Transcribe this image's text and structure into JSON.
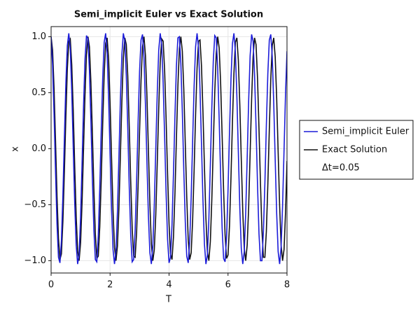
{
  "chart_data": {
    "type": "line",
    "title": "Semi_implicit Euler vs Exact Solution",
    "x_label": "T",
    "y_label": "x",
    "legend_note": "Δt=0.05",
    "legend": "right",
    "grid": true,
    "xlim": [
      0,
      8
    ],
    "xticks": [
      0,
      2,
      4,
      6,
      8
    ],
    "ylim": [
      -1.11,
      1.09
    ],
    "yticks": [
      {
        "value": -1,
        "label": "−1.0"
      },
      {
        "value": -0.5,
        "label": "−0.5"
      },
      {
        "value": 0,
        "label": "0.0"
      },
      {
        "value": 0.5,
        "label": "0.5"
      },
      {
        "value": 1,
        "label": "1.0"
      }
    ],
    "x": [
      0,
      0.05,
      0.1,
      0.15,
      0.2,
      0.25,
      0.3,
      0.35,
      0.4,
      0.45,
      0.5,
      0.55,
      0.6,
      0.65,
      0.7,
      0.75,
      0.8,
      0.85,
      0.9,
      0.95,
      1,
      1.05,
      1.1,
      1.15,
      1.2,
      1.25,
      1.3,
      1.35,
      1.4,
      1.45,
      1.5,
      1.55,
      1.6,
      1.65,
      1.7,
      1.75,
      1.8,
      1.85,
      1.9,
      1.95,
      2,
      2.05,
      2.1,
      2.15,
      2.2,
      2.25,
      2.3,
      2.35,
      2.4,
      2.45,
      2.5,
      2.55,
      2.6,
      2.65,
      2.7,
      2.75,
      2.8,
      2.85,
      2.9,
      2.95,
      3,
      3.05,
      3.1,
      3.15,
      3.2,
      3.25,
      3.3,
      3.35,
      3.4,
      3.45,
      3.5,
      3.55,
      3.6,
      3.65,
      3.7,
      3.75,
      3.8,
      3.85,
      3.9,
      3.95,
      4,
      4.05,
      4.1,
      4.15,
      4.2,
      4.25,
      4.3,
      4.35,
      4.4,
      4.45,
      4.5,
      4.55,
      4.6,
      4.65,
      4.7,
      4.75,
      4.8,
      4.85,
      4.9,
      4.95,
      5,
      5.05,
      5.1,
      5.15,
      5.2,
      5.25,
      5.3,
      5.35,
      5.4,
      5.45,
      5.5,
      5.55,
      5.6,
      5.65,
      5.7,
      5.75,
      5.8,
      5.85,
      5.9,
      5.95,
      6,
      6.05,
      6.1,
      6.15,
      6.2,
      6.25,
      6.3,
      6.35,
      6.4,
      6.45,
      6.5,
      6.55,
      6.6,
      6.65,
      6.7,
      6.75,
      6.8,
      6.85,
      6.9,
      6.95,
      7,
      7.05,
      7.1,
      7.15,
      7.2,
      7.25,
      7.3,
      7.35,
      7.4,
      7.45,
      7.5,
      7.55,
      7.6,
      7.65,
      7.7,
      7.75,
      7.8,
      7.85,
      7.9,
      7.95,
      8
    ],
    "series": [
      {
        "name": "Semi_implicit Euler",
        "color": "#1c1cd9",
        "values": [
          1,
          0.75,
          0.31,
          -0.2,
          -0.67,
          -0.97,
          -1.02,
          -0.82,
          -0.42,
          0.09,
          0.58,
          0.92,
          1.03,
          0.89,
          0.52,
          0.02,
          -0.48,
          -0.86,
          -1.03,
          -0.94,
          -0.61,
          -0.13,
          0.38,
          0.8,
          1.01,
          0.98,
          0.7,
          0.25,
          -0.27,
          -0.72,
          -0.99,
          -1.01,
          -0.78,
          -0.35,
          0.16,
          0.63,
          0.95,
          1.03,
          0.85,
          0.46,
          -0.05,
          -0.54,
          -0.9,
          -1.03,
          -0.91,
          -0.56,
          -0.07,
          0.44,
          0.84,
          1.03,
          0.96,
          0.65,
          0.18,
          -0.34,
          -0.77,
          -1.01,
          -0.99,
          -0.73,
          -0.29,
          0.23,
          0.69,
          0.97,
          1.02,
          0.81,
          0.39,
          -0.12,
          -0.6,
          -0.93,
          -1.03,
          -0.87,
          -0.5,
          0,
          0.5,
          0.88,
          1.03,
          0.93,
          0.59,
          0.11,
          -0.4,
          -0.81,
          -1.02,
          -0.97,
          -0.68,
          -0.22,
          0.29,
          0.74,
          0.99,
          1,
          0.76,
          0.33,
          -0.19,
          -0.65,
          -0.96,
          -1.02,
          -0.83,
          -0.44,
          0.07,
          0.56,
          0.91,
          1.03,
          0.9,
          0.53,
          0.04,
          -0.46,
          -0.85,
          -1.03,
          -0.95,
          -0.63,
          -0.15,
          0.36,
          0.78,
          1.01,
          0.99,
          0.71,
          0.26,
          -0.25,
          -0.71,
          -0.98,
          -1.01,
          -0.79,
          -0.37,
          0.14,
          0.62,
          0.94,
          1.03,
          0.86,
          0.47,
          -0.03,
          -0.53,
          -0.89,
          -1.03,
          -0.92,
          -0.57,
          -0.08,
          0.43,
          0.83,
          1.02,
          0.96,
          0.66,
          0.2,
          -0.32,
          -0.76,
          -1,
          -1,
          -0.74,
          -0.31,
          0.21,
          0.67,
          0.97,
          1.02,
          0.82,
          0.41,
          -0.1,
          -0.58,
          -0.92,
          -1.03,
          -0.88,
          -0.51,
          -0.01,
          0.49,
          0.87
        ]
      },
      {
        "name": "Exact Solution",
        "color": "#111111",
        "values": [
          1,
          0.88,
          0.54,
          0.07,
          -0.42,
          -0.8,
          -0.99,
          -0.94,
          -0.65,
          -0.21,
          0.28,
          0.71,
          0.96,
          0.98,
          0.75,
          0.35,
          -0.15,
          -0.6,
          -0.91,
          -1,
          -0.84,
          -0.48,
          0,
          0.48,
          0.84,
          1,
          0.91,
          0.59,
          0.14,
          -0.35,
          -0.76,
          -0.98,
          -0.96,
          -0.7,
          -0.28,
          0.22,
          0.66,
          0.94,
          0.99,
          0.8,
          0.41,
          -0.08,
          -0.55,
          -0.88,
          -1,
          -0.87,
          -0.53,
          -0.06,
          0.42,
          0.81,
          0.99,
          0.93,
          0.65,
          0.2,
          -0.29,
          -0.71,
          -0.96,
          -0.97,
          -0.75,
          -0.34,
          0.15,
          0.61,
          0.91,
          1,
          0.83,
          0.47,
          -0.01,
          -0.49,
          -0.85,
          -1,
          -0.9,
          -0.59,
          -0.13,
          0.36,
          0.77,
          0.98,
          0.96,
          0.7,
          0.27,
          -0.23,
          -0.67,
          -0.94,
          -0.99,
          -0.79,
          -0.4,
          0.09,
          0.56,
          0.89,
          1,
          0.87,
          0.53,
          0.05,
          -0.43,
          -0.81,
          -0.99,
          -0.93,
          -0.64,
          -0.19,
          0.3,
          0.72,
          0.96,
          0.97,
          0.74,
          0.33,
          -0.16,
          -0.62,
          -0.92,
          -1,
          -0.83,
          -0.46,
          0.02,
          0.5,
          0.85,
          1,
          0.9,
          0.58,
          0.12,
          -0.37,
          -0.77,
          -0.98,
          -0.95,
          -0.69,
          -0.26,
          0.24,
          0.67,
          0.95,
          0.99,
          0.79,
          0.39,
          -0.1,
          -0.56,
          -0.89,
          -1,
          -0.86,
          -0.52,
          -0.04,
          0.44,
          0.82,
          0.99,
          0.93,
          0.63,
          0.18,
          -0.31,
          -0.73,
          -0.97,
          -0.97,
          -0.74,
          -0.32,
          0.17,
          0.62,
          0.92,
          0.99,
          0.82,
          0.45,
          -0.03,
          -0.51,
          -0.86,
          -1,
          -0.9,
          -0.57,
          -0.11
        ]
      }
    ]
  }
}
